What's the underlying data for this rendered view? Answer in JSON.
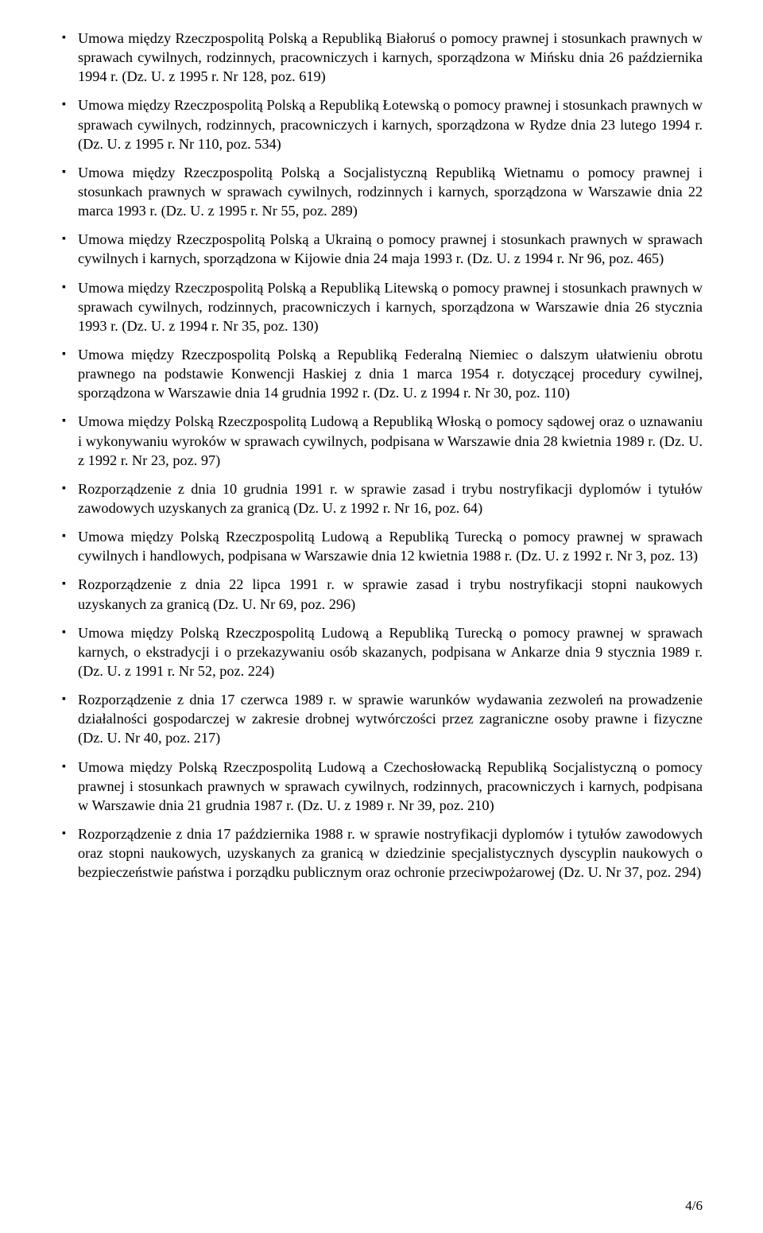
{
  "page": {
    "number": "4/6"
  },
  "items": [
    {
      "text": "Umowa między Rzeczpospolitą Polską a Republiką Białoruś o pomocy prawnej i stosunkach prawnych w sprawach cywilnych, rodzinnych, pracowniczych i karnych, sporządzona w Mińsku dnia 26 października 1994 r. (Dz. U. z 1995 r. Nr 128, poz. 619)"
    },
    {
      "text": "Umowa między Rzeczpospolitą Polską a Republiką Łotewską o pomocy prawnej i stosunkach prawnych w sprawach cywilnych, rodzinnych, pracowniczych i karnych, sporządzona w Rydze dnia 23 lutego 1994 r. (Dz. U. z 1995 r. Nr 110, poz. 534)"
    },
    {
      "text": "Umowa między Rzeczpospolitą Polską a Socjalistyczną Republiką Wietnamu o pomocy prawnej i stosunkach prawnych w sprawach cywilnych, rodzinnych i karnych, sporządzona w Warszawie dnia 22 marca 1993 r. (Dz. U. z 1995 r. Nr 55, poz. 289)"
    },
    {
      "text": "Umowa między Rzeczpospolitą Polską a Ukrainą o pomocy prawnej i stosunkach prawnych w sprawach cywilnych i karnych, sporządzona w Kijowie dnia 24 maja 1993 r. (Dz. U. z 1994 r. Nr 96, poz. 465)"
    },
    {
      "text": "Umowa między Rzeczpospolitą Polską a Republiką Litewską o pomocy prawnej i stosunkach prawnych w sprawach cywilnych, rodzinnych, pracowniczych i karnych, sporządzona w Warszawie dnia 26 stycznia 1993 r. (Dz. U. z 1994 r. Nr 35, poz. 130)"
    },
    {
      "text": "Umowa między Rzeczpospolitą Polską a Republiką Federalną Niemiec o dalszym ułatwieniu obrotu prawnego na podstawie Konwencji Haskiej z dnia 1 marca 1954 r. dotyczącej procedury cywilnej, sporządzona w Warszawie dnia 14 grudnia 1992 r. (Dz. U. z 1994 r. Nr 30, poz. 110)"
    },
    {
      "text": "Umowa między Polską Rzeczpospolitą Ludową a Republiką Włoską o pomocy sądowej oraz o uznawaniu i wykonywaniu wyroków w sprawach cywilnych, podpisana w Warszawie dnia 28 kwietnia 1989 r. (Dz. U. z 1992 r. Nr 23, poz. 97)"
    },
    {
      "text": "Rozporządzenie z dnia 10 grudnia 1991 r. w sprawie zasad i trybu nostryfikacji dyplomów i tytułów zawodowych uzyskanych za granicą (Dz. U. z 1992 r. Nr 16, poz. 64)"
    },
    {
      "text": "Umowa między Polską Rzeczpospolitą Ludową a Republiką Turecką o pomocy prawnej w sprawach cywilnych i handlowych, podpisana w Warszawie dnia 12 kwietnia 1988 r. (Dz. U. z 1992 r. Nr 3, poz. 13)"
    },
    {
      "text": "Rozporządzenie z dnia 22 lipca 1991 r. w sprawie zasad i trybu nostryfikacji stopni naukowych uzyskanych za granicą (Dz. U. Nr 69, poz. 296)"
    },
    {
      "text": "Umowa między Polską Rzeczpospolitą Ludową a Republiką Turecką o pomocy prawnej w sprawach karnych, o ekstradycji i o przekazywaniu osób skazanych, podpisana w Ankarze dnia 9 stycznia 1989 r. (Dz. U. z 1991 r. Nr 52, poz. 224)"
    },
    {
      "text": "Rozporządzenie z dnia 17 czerwca 1989 r. w sprawie warunków wydawania zezwoleń na prowadzenie działalności gospodarczej w zakresie drobnej wytwórczości przez zagraniczne osoby prawne i fizyczne (Dz. U. Nr 40, poz. 217)"
    },
    {
      "text": "Umowa między Polską Rzeczpospolitą Ludową a Czechosłowacką Republiką Socjalistyczną o pomocy prawnej i stosunkach prawnych w sprawach cywilnych, rodzinnych, pracowniczych i karnych, podpisana w Warszawie dnia 21 grudnia 1987 r. (Dz. U. z 1989 r. Nr 39, poz. 210)"
    },
    {
      "text": "Rozporządzenie z dnia 17 października 1988 r. w sprawie nostryfikacji dyplomów i tytułów zawodowych oraz stopni naukowych, uzyskanych za granicą w dziedzinie specjalistycznych dyscyplin naukowych o bezpieczeństwie państwa i porządku publicznym oraz ochronie przeciwpożarowej (Dz. U. Nr 37, poz. 294)"
    }
  ]
}
